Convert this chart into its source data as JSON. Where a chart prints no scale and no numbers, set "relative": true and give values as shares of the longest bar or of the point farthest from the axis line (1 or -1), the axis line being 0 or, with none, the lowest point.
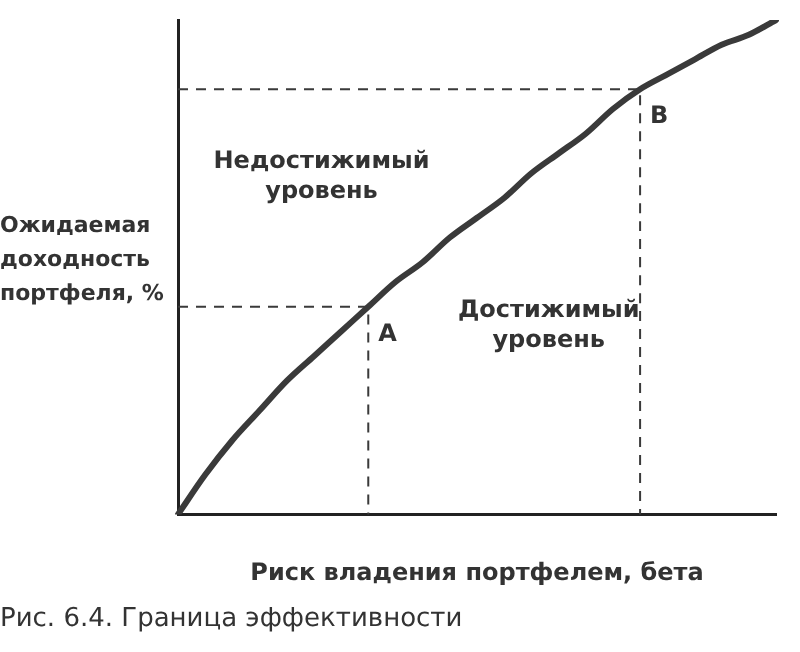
{
  "chart_data": {
    "type": "line",
    "relative": true,
    "xlabel": "Риск владения портфелем, бета",
    "ylabel": "Ожидаемая доходность портфеля, %",
    "grid": false,
    "legend": false,
    "marker": "none",
    "categories": [
      null,
      null,
      null,
      null,
      null,
      null,
      null,
      null,
      null,
      null,
      null,
      null,
      null,
      null,
      null,
      null,
      null,
      null,
      null,
      null,
      null,
      null,
      null
    ],
    "series": [
      {
        "color": "#3a3a3a",
        "values": [
          0,
          0.08,
          0.15,
          0.21,
          0.27,
          0.32,
          0.37,
          0.42,
          0.47,
          0.51,
          0.56,
          0.6,
          0.64,
          0.69,
          0.73,
          0.77,
          0.82,
          0.86,
          0.89,
          0.92,
          0.95,
          0.97,
          1
        ]
      }
    ],
    "ref_lines": [
      {
        "axis": "y",
        "value": 0.42,
        "label": "A",
        "line_style": "dashed",
        "color": "#3a3a3a"
      },
      {
        "axis": "y",
        "value": 0.86,
        "label": "B",
        "line_style": "dashed",
        "color": "#3a3a3a"
      }
    ],
    "annotations": [
      "Недостижимый уровень",
      "Достижимый уровень",
      "Рис. 6.4.  Граница эффективности"
    ]
  }
}
